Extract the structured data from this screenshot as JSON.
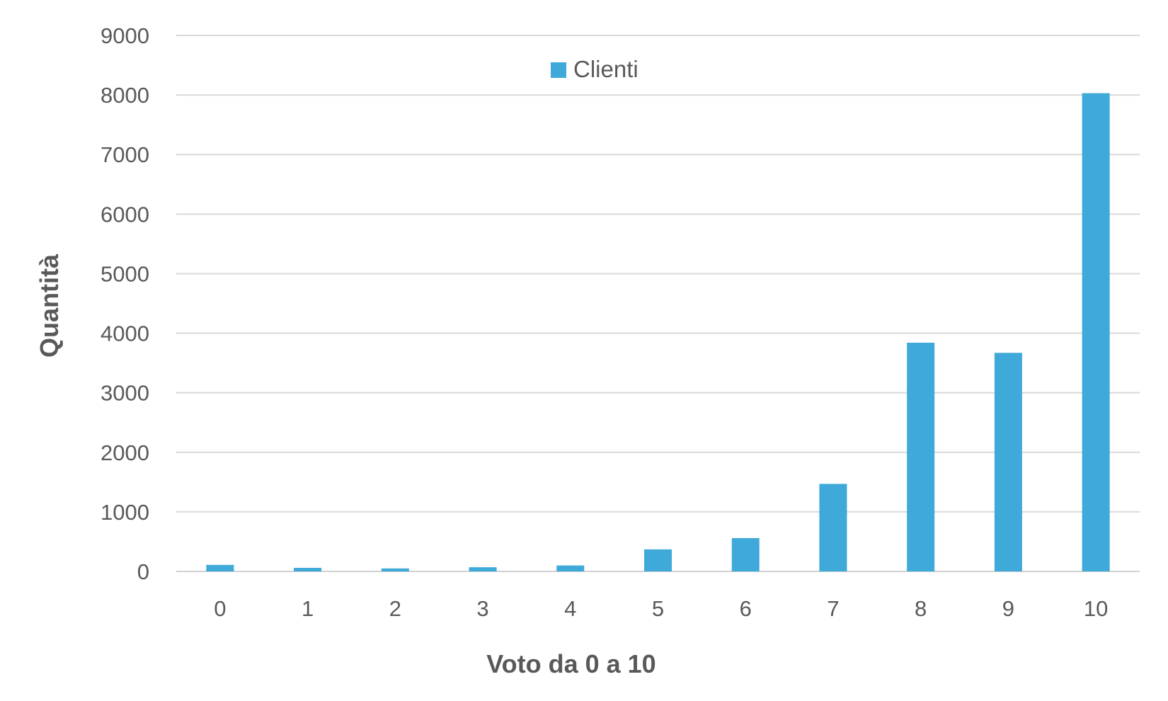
{
  "chart_data": {
    "type": "bar",
    "xlabel": "Voto da 0 a 10",
    "ylabel": "Quantità",
    "categories": [
      "0",
      "1",
      "2",
      "3",
      "4",
      "5",
      "6",
      "7",
      "8",
      "9",
      "10"
    ],
    "series": [
      {
        "name": "Clienti",
        "color": "#3FA9D9",
        "values": [
          110,
          60,
          50,
          70,
          100,
          370,
          560,
          1470,
          3840,
          3670,
          8030
        ]
      }
    ],
    "ylim": [
      0,
      9000
    ],
    "yticks": [
      "0",
      "1000",
      "2000",
      "3000",
      "4000",
      "5000",
      "6000",
      "7000",
      "8000",
      "9000"
    ],
    "grid": true,
    "legend_position": "top-center"
  }
}
